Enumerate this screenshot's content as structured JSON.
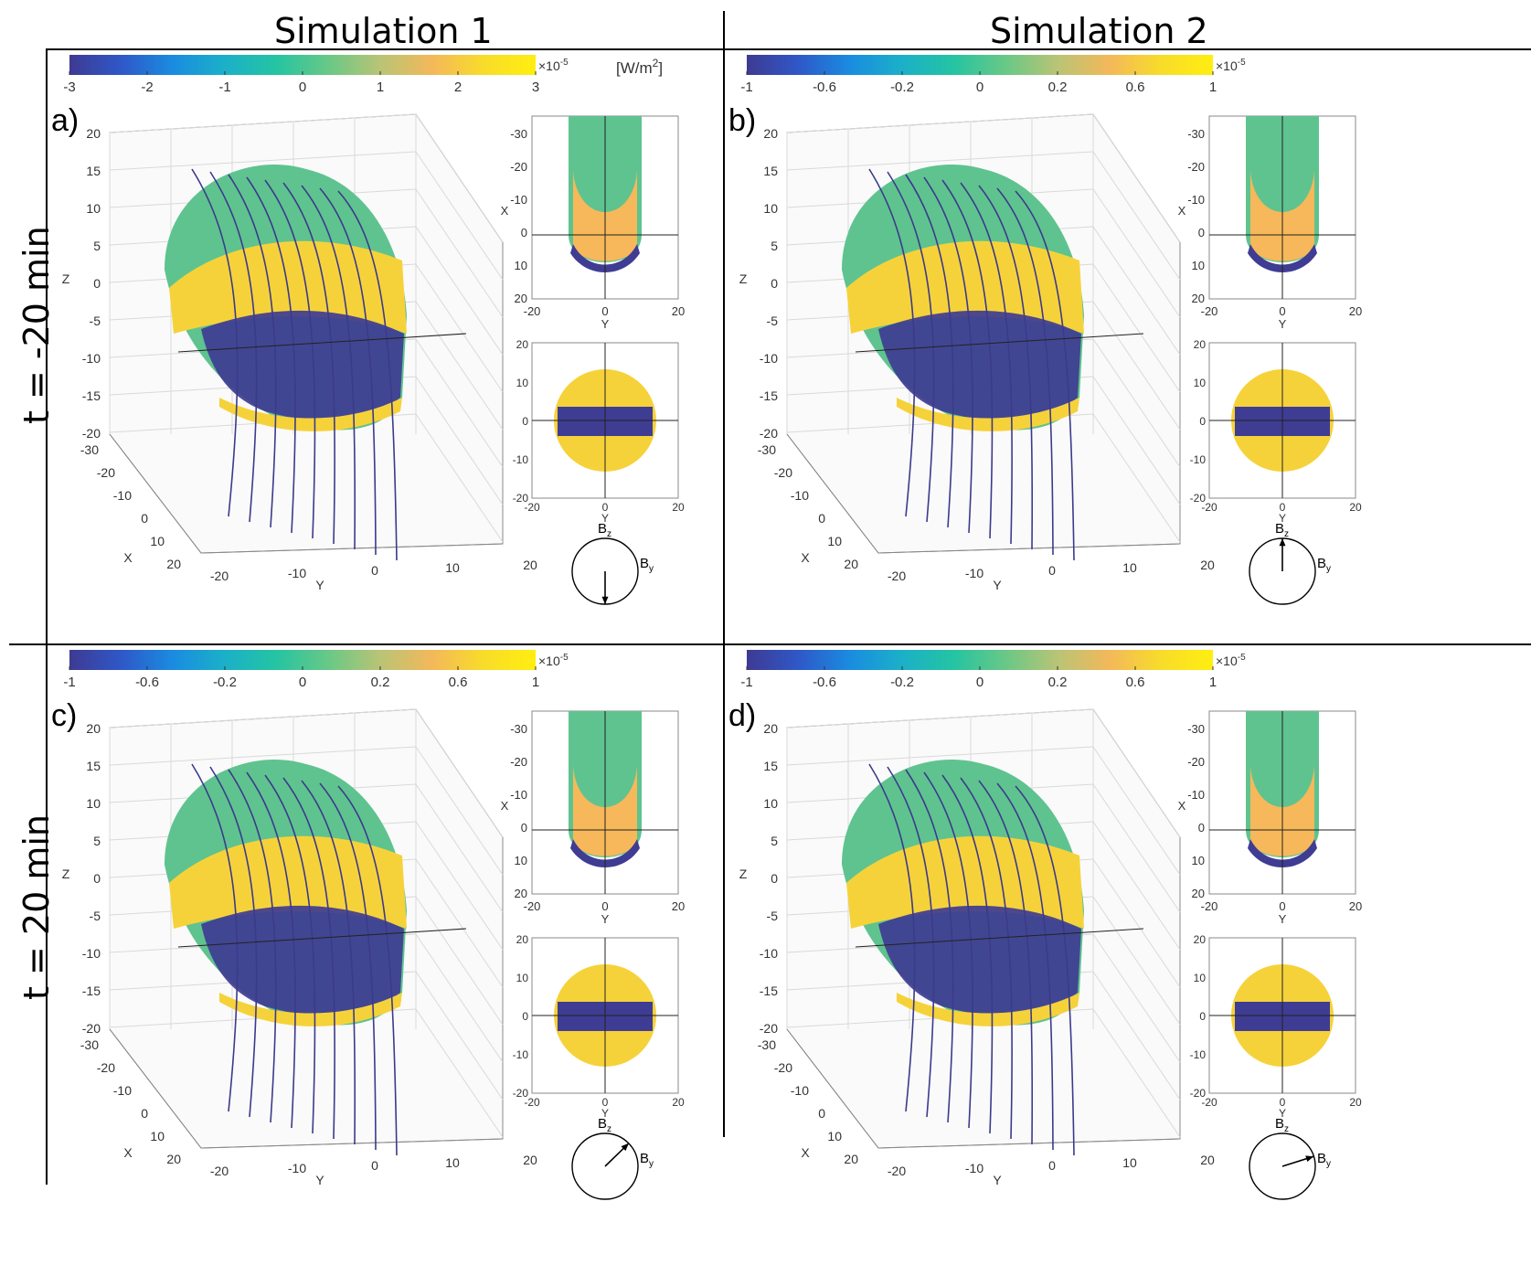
{
  "columns": [
    "Simulation 1",
    "Simulation 2"
  ],
  "rows": [
    "t = -20 min",
    "t = 20 min"
  ],
  "colorbar": {
    "colors": [
      "#3e3a92",
      "#2f58c8",
      "#1a8ce0",
      "#1bb0c8",
      "#25c4a2",
      "#69c886",
      "#b9c476",
      "#f3b85a",
      "#f8dc2a",
      "#ffee10"
    ],
    "exponent": "×10",
    "exponent_power": "-5",
    "unit": "[W/m",
    "unit_power": "2",
    "unit_close": "]",
    "ticks_a": [
      "-3",
      "-2",
      "-1",
      "0",
      "1",
      "2",
      "3"
    ],
    "ticks_other": [
      "-1",
      "-0.6",
      "-0.2",
      "0",
      "0.2",
      "0.6",
      "1"
    ]
  },
  "panels": [
    {
      "label": "a)",
      "field_arrow": "down"
    },
    {
      "label": "b)",
      "field_arrow": "up"
    },
    {
      "label": "c)",
      "field_arrow": "up-right"
    },
    {
      "label": "d)",
      "field_arrow": "right"
    }
  ],
  "axes3d": {
    "z_ticks": [
      "20",
      "15",
      "10",
      "5",
      "0",
      "-5",
      "-10",
      "-15",
      "-20"
    ],
    "x_ticks": [
      "-30",
      "-20",
      "-10",
      "0",
      "10",
      "20"
    ],
    "y_ticks": [
      "-20",
      "-10",
      "0",
      "10",
      "20"
    ],
    "x_label": "X",
    "y_label": "Y",
    "z_label": "Z"
  },
  "top_inset": {
    "x_ticks": [
      "-30",
      "-20",
      "-10",
      "0",
      "10",
      "20"
    ],
    "y_ticks": [
      "-20",
      "0",
      "20"
    ],
    "x_label": "X",
    "y_label": "Y"
  },
  "front_inset": {
    "ticks": [
      "20",
      "10",
      "0",
      "-10",
      "-20"
    ],
    "y_ticks": [
      "-20",
      "0",
      "20"
    ],
    "y_label": "Y"
  },
  "field_diagram": {
    "bz": "B",
    "bz_sub": "z",
    "by": "B",
    "by_sub": "y"
  },
  "colors": {
    "field_line": "#3b3a8c",
    "grid": "#d9d9d9",
    "axis": "#555555"
  }
}
